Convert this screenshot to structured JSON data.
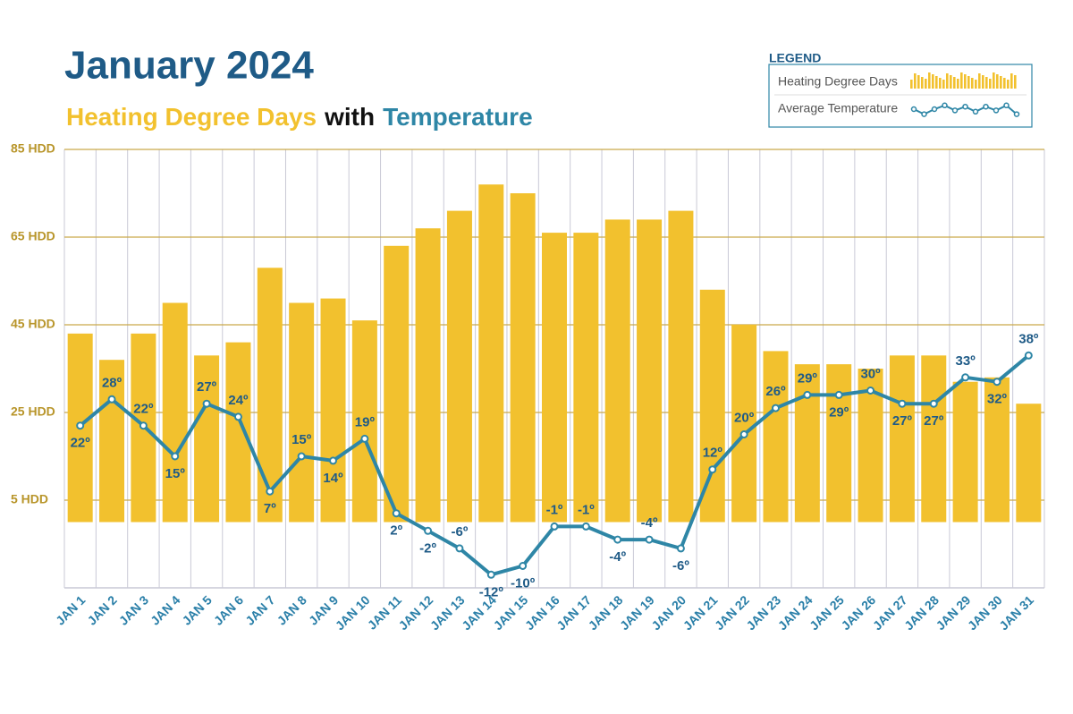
{
  "chart_data": {
    "type": "bar_line",
    "title": "January 2024",
    "subtitle_parts": [
      {
        "text": "Heating Degree Days",
        "color": "#f2c12e"
      },
      {
        "text": "with",
        "color": "#111111"
      },
      {
        "text": "Temperature",
        "color": "#2e86a6"
      }
    ],
    "legend_title": "LEGEND",
    "categories": [
      "JAN 1",
      "JAN 2",
      "JAN 3",
      "JAN 4",
      "JAN 5",
      "JAN 6",
      "JAN 7",
      "JAN 8",
      "JAN 9",
      "JAN 10",
      "JAN 11",
      "JAN 12",
      "JAN 13",
      "JAN 14",
      "JAN 15",
      "JAN 16",
      "JAN 17",
      "JAN 18",
      "JAN 19",
      "JAN 20",
      "JAN 21",
      "JAN 22",
      "JAN 23",
      "JAN 24",
      "JAN 25",
      "JAN 26",
      "JAN 27",
      "JAN 28",
      "JAN 29",
      "JAN 30",
      "JAN 31"
    ],
    "series": [
      {
        "name": "Heating Degree Days",
        "type": "bar",
        "color": "#f2c12e",
        "values": [
          43,
          37,
          43,
          50,
          38,
          41,
          58,
          50,
          51,
          46,
          63,
          67,
          71,
          77,
          75,
          66,
          66,
          69,
          69,
          71,
          53,
          45,
          39,
          36,
          36,
          35,
          38,
          38,
          32,
          33,
          27
        ]
      },
      {
        "name": "Average Temperature",
        "type": "line",
        "color": "#2e86a6",
        "values": [
          22,
          28,
          22,
          15,
          27,
          24,
          7,
          15,
          14,
          19,
          2,
          -2,
          -6,
          -12,
          -10,
          -1,
          -1,
          -4,
          -4,
          -6,
          12,
          20,
          26,
          29,
          29,
          30,
          27,
          27,
          33,
          32,
          38
        ],
        "value_labels": [
          "22º",
          "28º",
          "22º",
          "15º",
          "27º",
          "24º",
          "7º",
          "15º",
          "14º",
          "19º",
          "2º",
          "-2º",
          "-6º",
          "-12º",
          "-10º",
          "-1º",
          "-1º",
          "-4º",
          "-4º",
          "-6º",
          "12º",
          "20º",
          "26º",
          "29º",
          "29º",
          "30º",
          "27º",
          "27º",
          "33º",
          "32º",
          "38º"
        ]
      }
    ],
    "ylim": [
      -15,
      85
    ],
    "yticks": [
      {
        "value": 5,
        "label": "5 HDD"
      },
      {
        "value": 25,
        "label": "25 HDD"
      },
      {
        "value": 45,
        "label": "45 HDD"
      },
      {
        "value": 65,
        "label": "65 HDD"
      },
      {
        "value": 85,
        "label": "85 HDD"
      }
    ],
    "grid": true,
    "legend_position": "top-right"
  }
}
